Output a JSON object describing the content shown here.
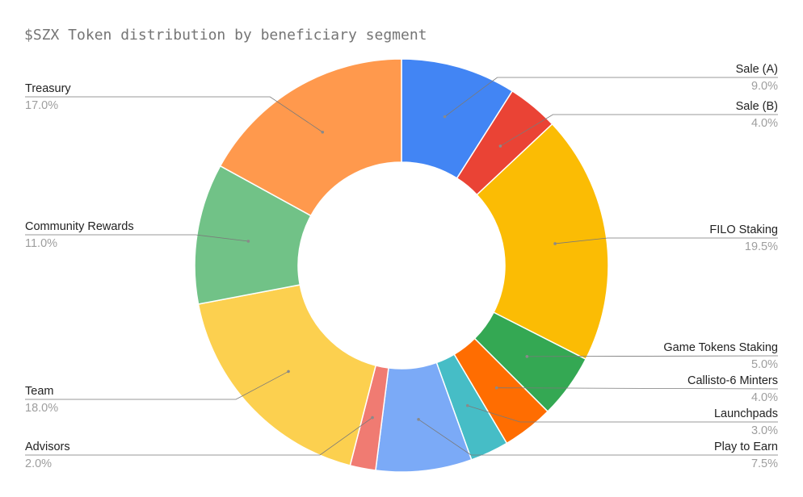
{
  "chart_data": {
    "type": "pie",
    "donut": true,
    "title": "$SZX Token distribution by beneficiary segment",
    "slices": [
      {
        "label": "Sale (A)",
        "value": 9.0,
        "display": "9.0%",
        "color": "#4285F4",
        "side": "right"
      },
      {
        "label": "Sale (B)",
        "value": 4.0,
        "display": "4.0%",
        "color": "#EA4335",
        "side": "right"
      },
      {
        "label": "FILO Staking",
        "value": 19.5,
        "display": "19.5%",
        "color": "#FBBC04",
        "side": "right"
      },
      {
        "label": "Game Tokens Staking",
        "value": 5.0,
        "display": "5.0%",
        "color": "#34A853",
        "side": "right"
      },
      {
        "label": "Callisto-6 Minters",
        "value": 4.0,
        "display": "4.0%",
        "color": "#FF6D01",
        "side": "right"
      },
      {
        "label": "Launchpads",
        "value": 3.0,
        "display": "3.0%",
        "color": "#46BDC6",
        "side": "right"
      },
      {
        "label": "Play to Earn",
        "value": 7.5,
        "display": "7.5%",
        "color": "#7BAAF7",
        "side": "right"
      },
      {
        "label": "Advisors",
        "value": 2.0,
        "display": "2.0%",
        "color": "#F07B72",
        "side": "left"
      },
      {
        "label": "Team",
        "value": 18.0,
        "display": "18.0%",
        "color": "#FCD04F",
        "side": "left"
      },
      {
        "label": "Community Rewards",
        "value": 11.0,
        "display": "11.0%",
        "color": "#71C287",
        "side": "left"
      },
      {
        "label": "Treasury",
        "value": 17.0,
        "display": "17.0%",
        "color": "#FF994D",
        "side": "left"
      }
    ]
  }
}
